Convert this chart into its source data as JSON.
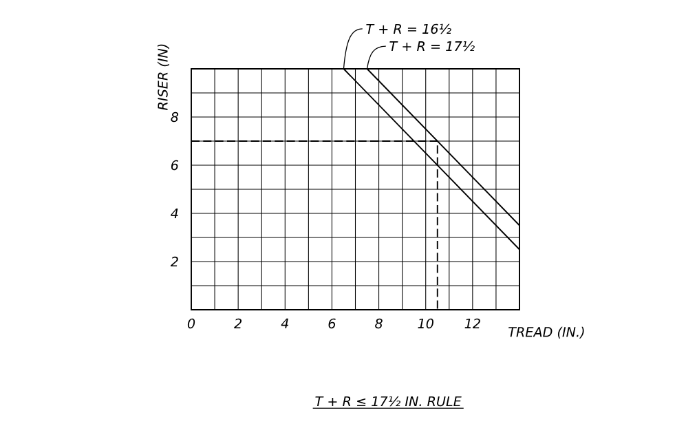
{
  "chart_data": {
    "type": "line",
    "title": "T + R ≤ 17½ IN. RULE",
    "xlabel": "TREAD (IN.)",
    "ylabel": "RISER (IN)",
    "xlim": [
      0,
      14
    ],
    "ylim": [
      0,
      10
    ],
    "xticks": [
      0,
      {
        "value": 1,
        "label": null
      },
      2,
      {
        "value": 3,
        "label": null
      },
      4,
      {
        "value": 5,
        "label": null
      },
      6,
      {
        "value": 7,
        "label": null
      },
      8,
      {
        "value": 9,
        "label": null
      },
      10,
      {
        "value": 11,
        "label": null
      },
      12,
      {
        "value": 13,
        "label": null
      },
      {
        "value": 14,
        "label": null
      }
    ],
    "yticks": [
      {
        "value": 0,
        "label": null
      },
      {
        "value": 1,
        "label": null
      },
      2,
      {
        "value": 3,
        "label": null
      },
      4,
      {
        "value": 5,
        "label": null
      },
      6,
      {
        "value": 7,
        "label": null
      },
      8,
      {
        "value": 9,
        "label": null
      },
      {
        "value": 10,
        "label": null
      }
    ],
    "grid": true,
    "series": [
      {
        "color": "#000000",
        "x": [
          6.5,
          14
        ],
        "values": [
          10,
          2.5
        ]
      },
      {
        "color": "#000000",
        "x": [
          7.5,
          14
        ],
        "values": [
          10,
          3.5
        ]
      },
      {
        "color": "#000000",
        "x": [
          0,
          10.5,
          10.5
        ],
        "values": [
          7,
          7,
          0
        ],
        "line_style": "dashed"
      }
    ],
    "annotations": [
      {
        "text": "T + R = 16½",
        "x": 6.5,
        "y": 10
      },
      {
        "text": "T + R = 17½",
        "x": 7.5,
        "y": 10
      }
    ]
  }
}
